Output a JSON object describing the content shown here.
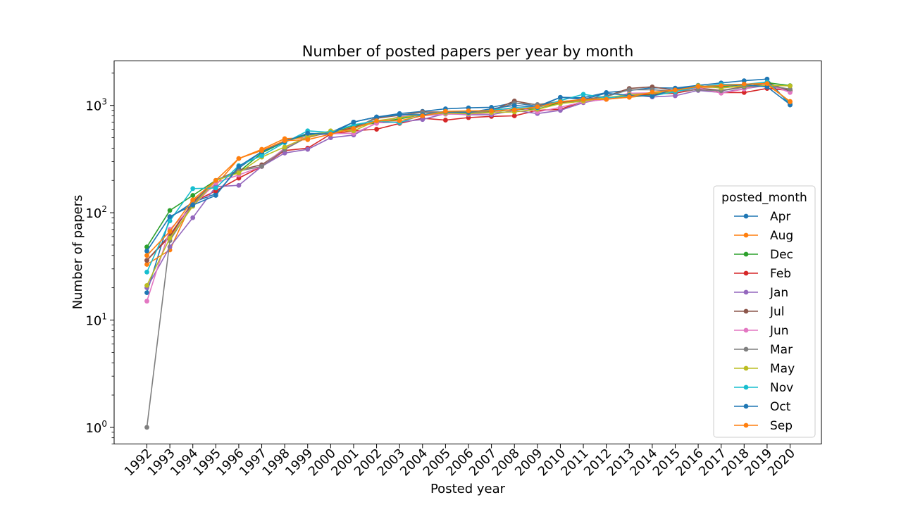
{
  "chart_data": {
    "type": "line",
    "title": "Number of posted papers per year by month",
    "xlabel": "Posted year",
    "ylabel": "Number of papers",
    "yscale": "log",
    "ylim": [
      0.7,
      2600
    ],
    "y_ticks": [
      {
        "value": 1,
        "base": "10",
        "exp": "0"
      },
      {
        "value": 10,
        "base": "10",
        "exp": "1"
      },
      {
        "value": 100,
        "base": "10",
        "exp": "2"
      },
      {
        "value": 1000,
        "base": "10",
        "exp": "3"
      }
    ],
    "grid": false,
    "legend": {
      "title": "posted_month",
      "placement": "center-right"
    },
    "x": [
      "1992",
      "1993",
      "1994",
      "1995",
      "1996",
      "1997",
      "1998",
      "1999",
      "2000",
      "2001",
      "2002",
      "2003",
      "2004",
      "2005",
      "2006",
      "2007",
      "2008",
      "2009",
      "2010",
      "2011",
      "2012",
      "2013",
      "2014",
      "2015",
      "2016",
      "2017",
      "2018",
      "2019",
      "2020"
    ],
    "series": [
      {
        "name": "Apr",
        "color": "#1f77b4",
        "values": [
          18,
          90,
          125,
          150,
          260,
          370,
          470,
          530,
          560,
          700,
          780,
          840,
          880,
          930,
          950,
          960,
          1060,
          980,
          1190,
          1180,
          1320,
          1380,
          1460,
          1450,
          1540,
          1620,
          1700,
          1760,
          1010
        ]
      },
      {
        "name": "Aug",
        "color": "#ff7f0e",
        "values": [
          33,
          45,
          130,
          180,
          320,
          390,
          490,
          500,
          570,
          630,
          690,
          780,
          820,
          860,
          880,
          900,
          950,
          920,
          1080,
          1100,
          1150,
          1190,
          1250,
          1340,
          1480,
          1470,
          1500,
          1560,
          1090
        ]
      },
      {
        "name": "Dec",
        "color": "#2ca02c",
        "values": [
          48,
          105,
          145,
          200,
          240,
          360,
          460,
          540,
          560,
          650,
          690,
          750,
          820,
          830,
          850,
          870,
          920,
          920,
          1060,
          1090,
          1170,
          1220,
          1270,
          1400,
          1510,
          1500,
          1560,
          1630,
          1530
        ]
      },
      {
        "name": "Feb",
        "color": "#d62728",
        "values": [
          36,
          60,
          125,
          160,
          210,
          270,
          380,
          400,
          540,
          580,
          600,
          680,
          760,
          730,
          770,
          790,
          800,
          900,
          920,
          1090,
          1140,
          1240,
          1280,
          1300,
          1420,
          1320,
          1320,
          1440,
          1380
        ]
      },
      {
        "name": "Jan",
        "color": "#9467bd",
        "values": [
          20,
          48,
          90,
          175,
          180,
          270,
          360,
          390,
          500,
          530,
          690,
          700,
          740,
          840,
          820,
          820,
          900,
          840,
          900,
          1060,
          1160,
          1260,
          1200,
          1230,
          1380,
          1320,
          1430,
          1540,
          1360
        ]
      },
      {
        "name": "Jul",
        "color": "#8c564b",
        "values": [
          36,
          62,
          125,
          200,
          250,
          280,
          390,
          510,
          560,
          620,
          760,
          810,
          870,
          870,
          870,
          890,
          1100,
          1010,
          1060,
          1130,
          1220,
          1440,
          1490,
          1380,
          1450,
          1380,
          1490,
          1620,
          1370
        ]
      },
      {
        "name": "Jun",
        "color": "#e377c2",
        "values": [
          15,
          70,
          115,
          190,
          225,
          270,
          400,
          520,
          545,
          550,
          680,
          790,
          800,
          830,
          830,
          850,
          970,
          870,
          960,
          1080,
          1140,
          1300,
          1310,
          1360,
          1460,
          1300,
          1420,
          1590,
          1320
        ]
      },
      {
        "name": "Mar",
        "color": "#7f7f7f",
        "values": [
          1,
          55,
          120,
          200,
          245,
          270,
          390,
          510,
          560,
          600,
          780,
          810,
          860,
          850,
          850,
          890,
          1050,
          1020,
          1090,
          1120,
          1210,
          1400,
          1400,
          1360,
          1400,
          1370,
          1480,
          1540,
          1420
        ]
      },
      {
        "name": "May",
        "color": "#bcbd22",
        "values": [
          21,
          58,
          115,
          200,
          235,
          330,
          410,
          510,
          580,
          580,
          720,
          770,
          820,
          850,
          840,
          860,
          870,
          920,
          1040,
          1100,
          1180,
          1260,
          1300,
          1340,
          1530,
          1450,
          1530,
          1540,
          1520
        ]
      },
      {
        "name": "Nov",
        "color": "#17becf",
        "values": [
          28,
          84,
          168,
          170,
          275,
          340,
          450,
          580,
          560,
          660,
          720,
          690,
          820,
          880,
          880,
          900,
          950,
          950,
          1110,
          1270,
          1180,
          1220,
          1230,
          1340,
          1490,
          1570,
          1570,
          1650,
          1050
        ]
      },
      {
        "name": "Oct",
        "color": "#1f77b4",
        "values": [
          44,
          92,
          118,
          145,
          270,
          370,
          460,
          550,
          540,
          700,
          780,
          820,
          820,
          870,
          860,
          930,
          1000,
          960,
          1190,
          1140,
          1300,
          1240,
          1220,
          1430,
          1500,
          1520,
          1560,
          1490,
          1020
        ]
      },
      {
        "name": "Sep",
        "color": "#ff7f0e",
        "values": [
          40,
          67,
          132,
          200,
          320,
          380,
          470,
          480,
          540,
          610,
          720,
          720,
          800,
          880,
          890,
          890,
          910,
          970,
          1080,
          1140,
          1140,
          1200,
          1330,
          1390,
          1500,
          1530,
          1580,
          1600,
          1080
        ]
      }
    ]
  }
}
